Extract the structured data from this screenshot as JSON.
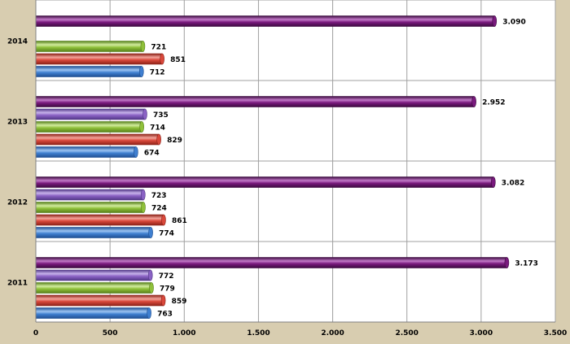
{
  "chart_data": {
    "type": "bar",
    "orientation": "horizontal",
    "categories": [
      "2011",
      "2012",
      "2013",
      "2014"
    ],
    "series": [
      {
        "values": [
          763,
          774,
          674,
          712
        ]
      },
      {
        "values": [
          859,
          861,
          829,
          851
        ]
      },
      {
        "values": [
          779,
          724,
          714,
          721
        ]
      },
      {
        "values": [
          772,
          723,
          735,
          null
        ]
      },
      {
        "values": [
          3173,
          3082,
          2952,
          3090
        ]
      }
    ],
    "data_labels": [
      [
        "763",
        "774",
        "674",
        "712"
      ],
      [
        "859",
        "861",
        "829",
        "851"
      ],
      [
        "779",
        "724",
        "714",
        "721"
      ],
      [
        "772",
        "723",
        "735",
        ""
      ],
      [
        "3.173",
        "3.082",
        "2.952",
        "3.090"
      ]
    ],
    "xlim": [
      0,
      3500
    ],
    "x_ticks": [
      0,
      500,
      1000,
      1500,
      2000,
      2500,
      3000,
      3500
    ],
    "x_tick_labels": [
      "0",
      "500",
      "1.000",
      "1.500",
      "2.000",
      "2.500",
      "3.000",
      "3.500"
    ],
    "grid": true,
    "legend": "none",
    "title": "",
    "xlabel": "",
    "ylabel": ""
  },
  "colors": {
    "series": [
      "#3f7fd0",
      "#d9483b",
      "#8fc03a",
      "#8a62c4",
      "#7a1a7e"
    ],
    "series_dark": [
      "#1f4f92",
      "#8e2218",
      "#56801a",
      "#523888",
      "#3d0a40"
    ],
    "series_light": [
      "#9cc4f2",
      "#f2a39a",
      "#d2ec9e",
      "#c7b3ea",
      "#c27ac8"
    ],
    "plot_background": "#ffffff",
    "grid": "#a0a0a0",
    "frame_background": "#d8cdb0"
  }
}
